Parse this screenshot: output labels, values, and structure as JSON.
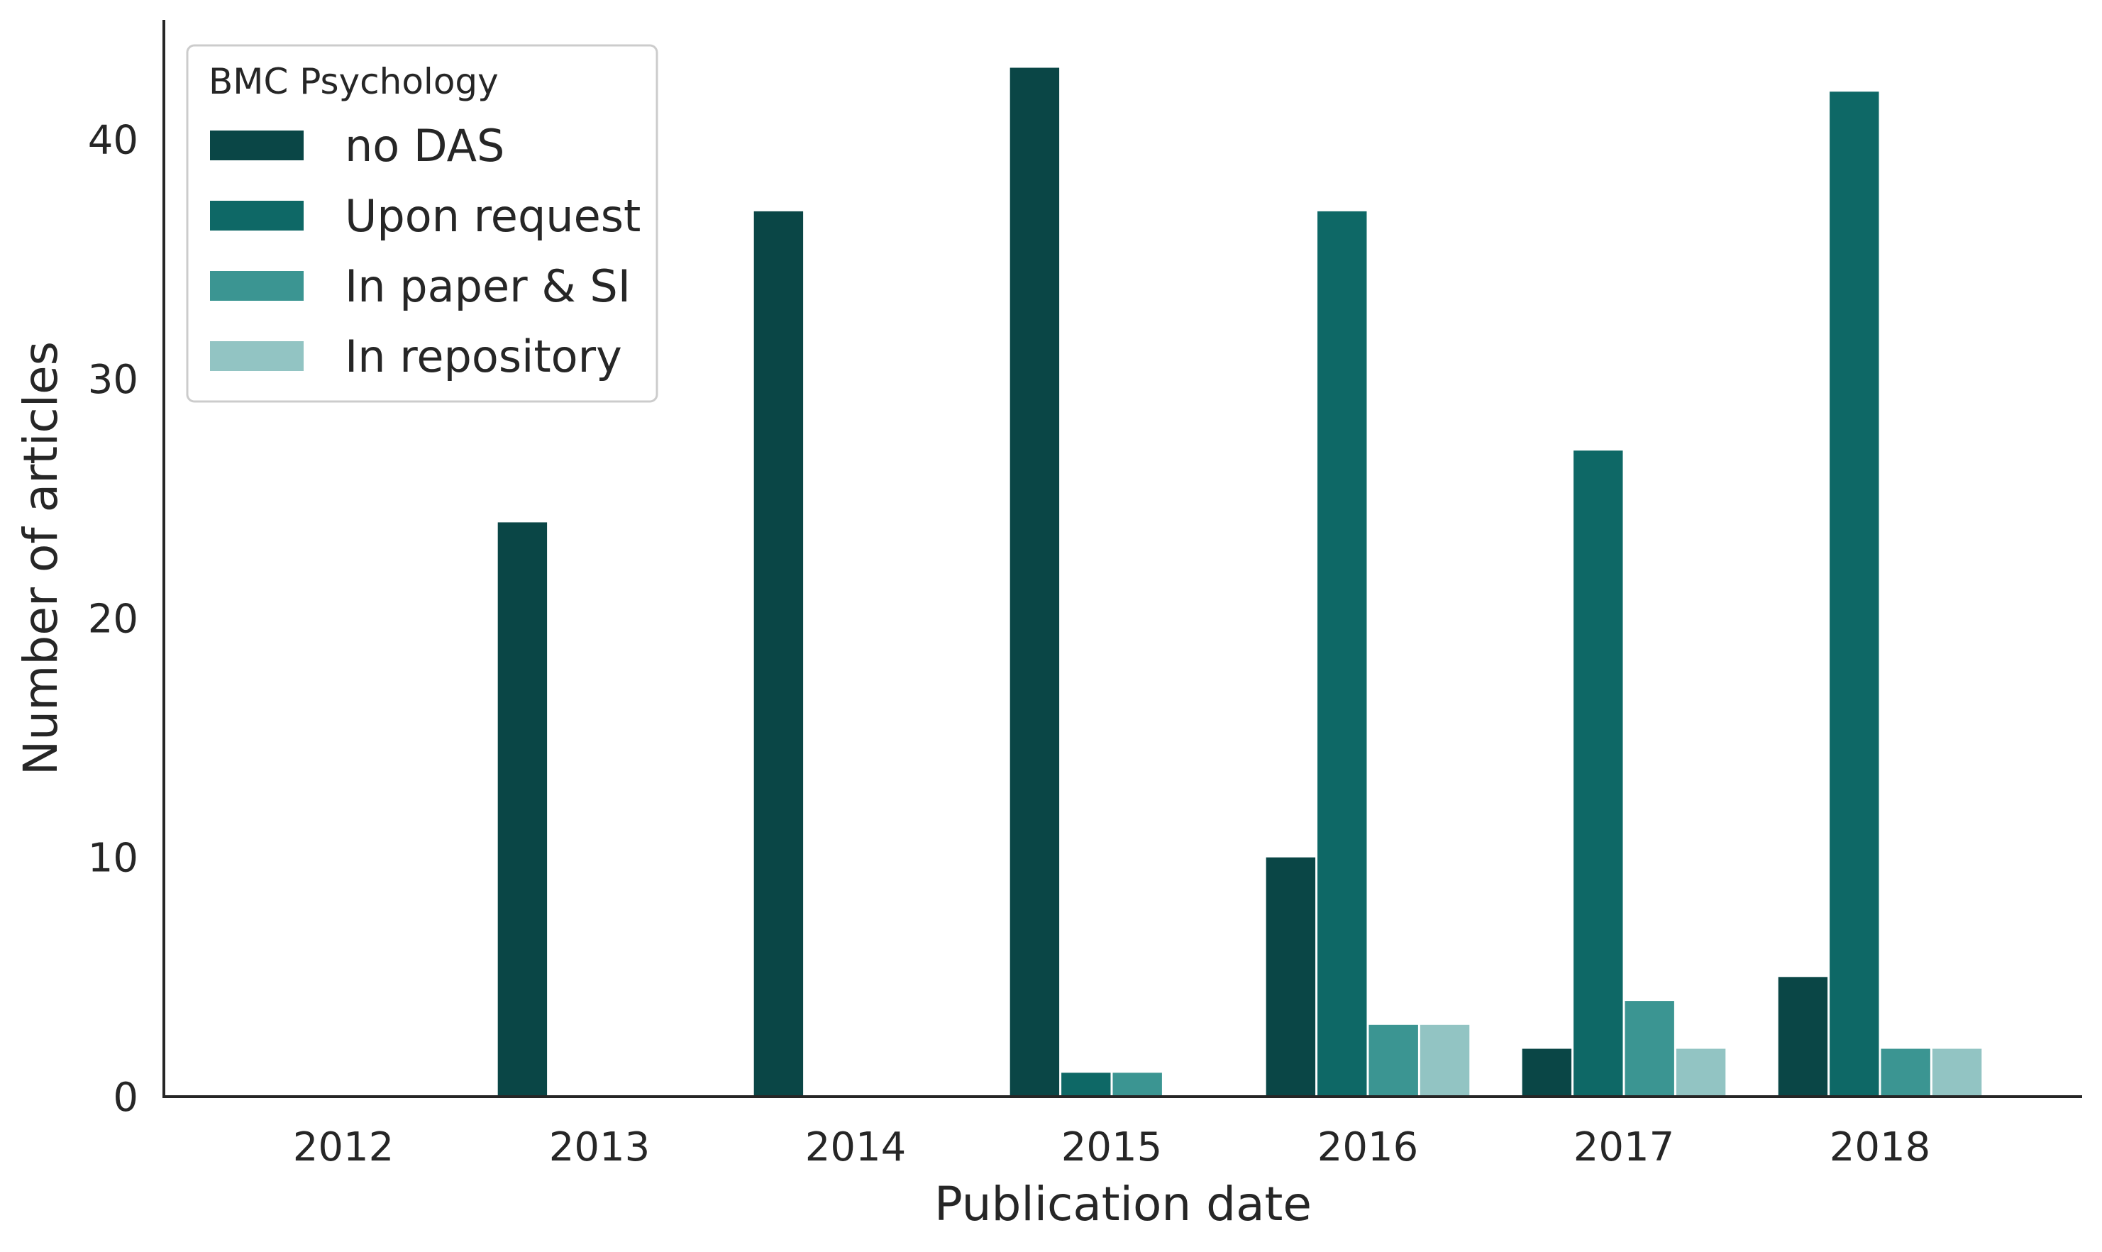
{
  "chart_data": {
    "type": "bar",
    "title": "",
    "xlabel": "Publication date",
    "ylabel": "Number of articles",
    "ylim": [
      0,
      45
    ],
    "yticks": [
      0,
      10,
      20,
      30,
      40
    ],
    "grid": false,
    "legend": {
      "title": "BMC Psychology",
      "placement": "top-left"
    },
    "categories": [
      "2012",
      "2013",
      "2014",
      "2015",
      "2016",
      "2017",
      "2018"
    ],
    "series": [
      {
        "name": "no DAS",
        "color": "#0a4646",
        "values": [
          0,
          24,
          37,
          43,
          10,
          2,
          5
        ]
      },
      {
        "name": "Upon request",
        "color": "#0e6866",
        "values": [
          0,
          0,
          0,
          1,
          37,
          27,
          42
        ]
      },
      {
        "name": "In paper & SI",
        "color": "#3b9592",
        "values": [
          0,
          0,
          0,
          1,
          3,
          4,
          2
        ]
      },
      {
        "name": "In repository",
        "color": "#92c4c3",
        "values": [
          0,
          0,
          0,
          0,
          3,
          2,
          2
        ]
      }
    ]
  }
}
